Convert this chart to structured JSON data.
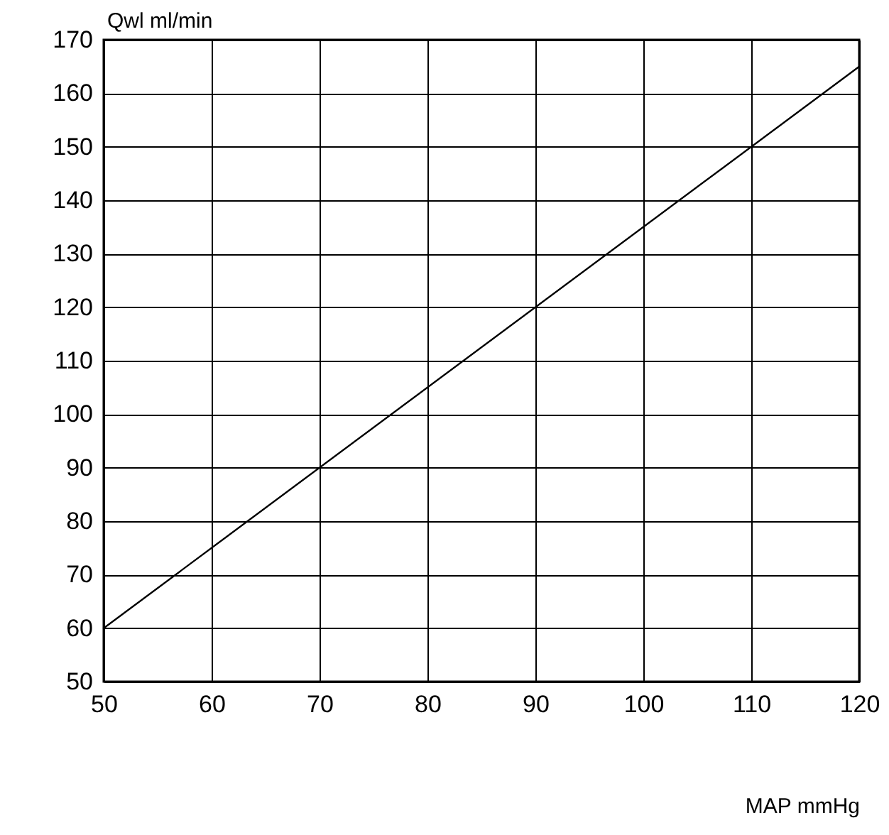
{
  "chart_data": {
    "type": "line",
    "xlabel": "MAP  mmHg",
    "ylabel": "Qwl  ml/min",
    "x": [
      50,
      120
    ],
    "series": [
      {
        "color": "#000000",
        "values": [
          60,
          165
        ]
      }
    ],
    "xlim": [
      50,
      120
    ],
    "xticks": [
      50,
      60,
      70,
      80,
      90,
      100,
      110,
      120
    ],
    "ylim": [
      50,
      170
    ],
    "yticks": [
      50,
      60,
      70,
      80,
      90,
      100,
      110,
      120,
      130,
      140,
      150,
      160,
      170
    ],
    "grid": true,
    "marker": "none",
    "line_style": "solid"
  }
}
